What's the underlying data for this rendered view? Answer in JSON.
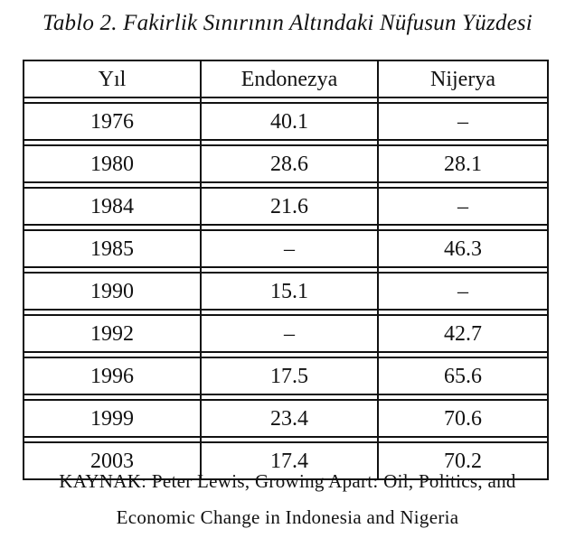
{
  "title": "Tablo 2. Fakirlik Sınırının Altındaki Nüfusun Yüzdesi",
  "table": {
    "headers": [
      "Yıl",
      "Endonezya",
      "Nijerya"
    ],
    "rows": [
      [
        "1976",
        "40.1",
        "–"
      ],
      [
        "1980",
        "28.6",
        "28.1"
      ],
      [
        "1984",
        "21.6",
        "–"
      ],
      [
        "1985",
        "–",
        "46.3"
      ],
      [
        "1990",
        "15.1",
        "–"
      ],
      [
        "1992",
        "–",
        "42.7"
      ],
      [
        "1996",
        "17.5",
        "65.6"
      ],
      [
        "1999",
        "23.4",
        "70.6"
      ],
      [
        "2003",
        "17.4",
        "70.2"
      ]
    ]
  },
  "source": {
    "line1": "KAYNAK: Peter Lewis, Growing Apart: Oil, Politics, and",
    "line2": "Economic Change in Indonesia and Nigeria"
  }
}
